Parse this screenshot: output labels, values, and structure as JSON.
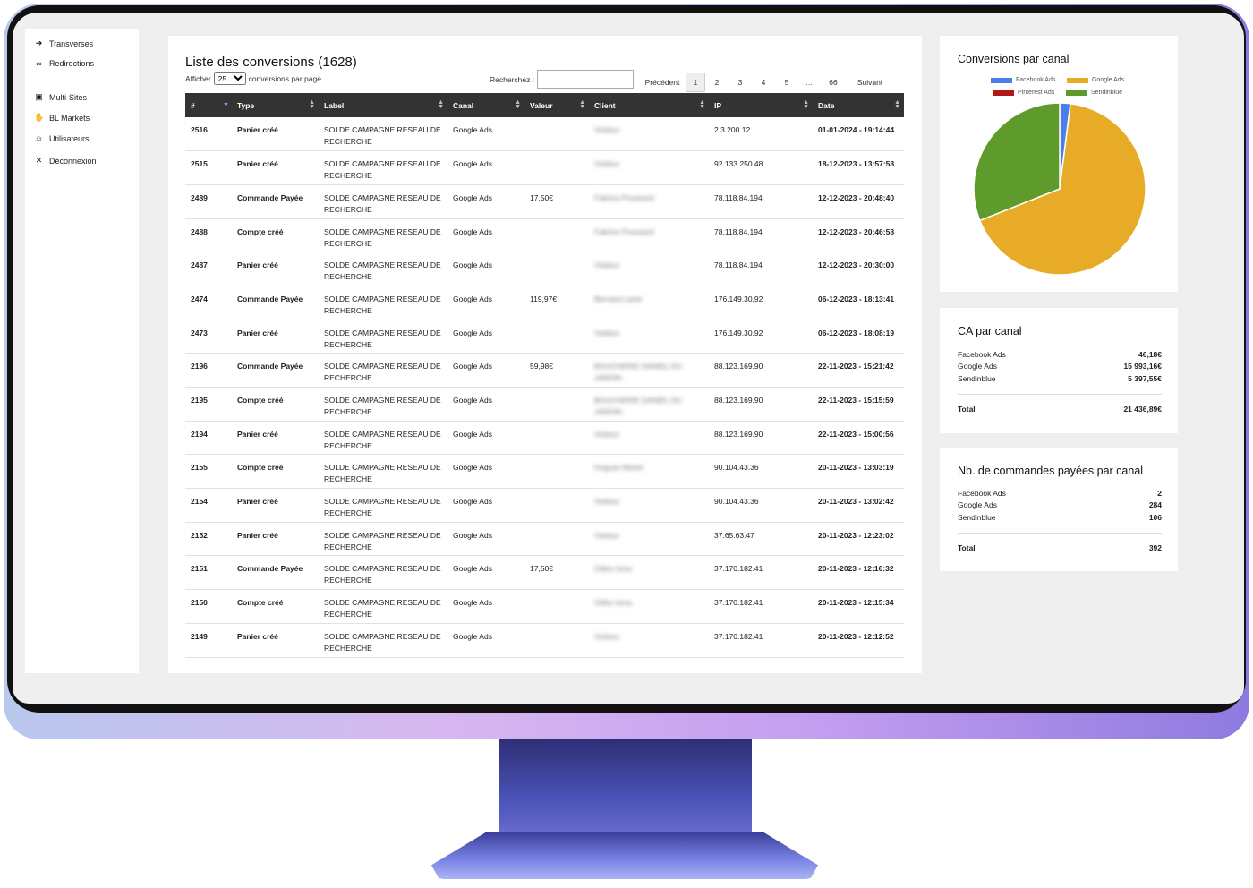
{
  "sidebar": {
    "items": [
      {
        "label": "Transverses",
        "icon": "arrow-left-icon"
      },
      {
        "label": "Redirections",
        "icon": "link-icon"
      },
      {
        "label": "Multi-Sites",
        "icon": "window-icon"
      },
      {
        "label": "BL Markets",
        "icon": "hand-icon"
      },
      {
        "label": "Utilisateurs",
        "icon": "users-icon"
      },
      {
        "label": "Déconnexion",
        "icon": "close-icon"
      }
    ]
  },
  "main": {
    "title": "Liste des conversions (1628)",
    "show_label": "Afficher",
    "per_page": "25",
    "per_page_suffix": "conversions par page",
    "search_label": "Recherchez :",
    "search_value": "",
    "pagination": {
      "prev": "Précédent",
      "pages": [
        "1",
        "2",
        "3",
        "4",
        "5",
        "...",
        "66"
      ],
      "current": "1",
      "next": "Suivant"
    },
    "columns": [
      "#",
      "Type",
      "Label",
      "Canal",
      "Valeur",
      "Client",
      "IP",
      "Date"
    ],
    "rows": [
      {
        "id": "2516",
        "type": "Panier créé",
        "label": "SOLDE CAMPAGNE RESEAU DE RECHERCHE",
        "canal": "Google Ads",
        "valeur": "",
        "client": "Visiteur",
        "ip": "2.3.200.12",
        "date": "01-01-2024 - 19:14:44"
      },
      {
        "id": "2515",
        "type": "Panier créé",
        "label": "SOLDE CAMPAGNE RESEAU DE RECHERCHE",
        "canal": "Google Ads",
        "valeur": "",
        "client": "Visiteur",
        "ip": "92.133.250.48",
        "date": "18-12-2023 - 13:57:58"
      },
      {
        "id": "2489",
        "type": "Commande Payée",
        "label": "SOLDE CAMPAGNE RESEAU DE RECHERCHE",
        "canal": "Google Ads",
        "valeur": "17,50€",
        "client": "Fabrice Poussard",
        "ip": "78.118.84.194",
        "date": "12-12-2023 - 20:48:40"
      },
      {
        "id": "2488",
        "type": "Compte créé",
        "label": "SOLDE CAMPAGNE RESEAU DE RECHERCHE",
        "canal": "Google Ads",
        "valeur": "",
        "client": "Fabrice Poussard",
        "ip": "78.118.84.194",
        "date": "12-12-2023 - 20:46:58"
      },
      {
        "id": "2487",
        "type": "Panier créé",
        "label": "SOLDE CAMPAGNE RESEAU DE RECHERCHE",
        "canal": "Google Ads",
        "valeur": "",
        "client": "Visiteur",
        "ip": "78.118.84.194",
        "date": "12-12-2023 - 20:30:00"
      },
      {
        "id": "2474",
        "type": "Commande Payée",
        "label": "SOLDE CAMPAGNE RESEAU DE RECHERCHE",
        "canal": "Google Ads",
        "valeur": "119,97€",
        "client": "Bernard Lanie",
        "ip": "176.149.30.92",
        "date": "06-12-2023 - 18:13:41"
      },
      {
        "id": "2473",
        "type": "Panier créé",
        "label": "SOLDE CAMPAGNE RESEAU DE RECHERCHE",
        "canal": "Google Ads",
        "valeur": "",
        "client": "Visiteur",
        "ip": "176.149.30.92",
        "date": "06-12-2023 - 18:08:19"
      },
      {
        "id": "2196",
        "type": "Commande Payée",
        "label": "SOLDE CAMPAGNE RESEAU DE RECHERCHE",
        "canal": "Google Ads",
        "valeur": "59,98€",
        "client": "BOUCHERIE DANIEL DU JARDIN",
        "ip": "88.123.169.90",
        "date": "22-11-2023 - 15:21:42"
      },
      {
        "id": "2195",
        "type": "Compte créé",
        "label": "SOLDE CAMPAGNE RESEAU DE RECHERCHE",
        "canal": "Google Ads",
        "valeur": "",
        "client": "BOUCHERIE DANIEL DU JARDIN",
        "ip": "88.123.169.90",
        "date": "22-11-2023 - 15:15:59"
      },
      {
        "id": "2194",
        "type": "Panier créé",
        "label": "SOLDE CAMPAGNE RESEAU DE RECHERCHE",
        "canal": "Google Ads",
        "valeur": "",
        "client": "Visiteur",
        "ip": "88.123.169.90",
        "date": "22-11-2023 - 15:00:56"
      },
      {
        "id": "2155",
        "type": "Compte créé",
        "label": "SOLDE CAMPAGNE RESEAU DE RECHERCHE",
        "canal": "Google Ads",
        "valeur": "",
        "client": "Hugues Martin",
        "ip": "90.104.43.36",
        "date": "20-11-2023 - 13:03:19"
      },
      {
        "id": "2154",
        "type": "Panier créé",
        "label": "SOLDE CAMPAGNE RESEAU DE RECHERCHE",
        "canal": "Google Ads",
        "valeur": "",
        "client": "Visiteur",
        "ip": "90.104.43.36",
        "date": "20-11-2023 - 13:02:42"
      },
      {
        "id": "2152",
        "type": "Panier créé",
        "label": "SOLDE CAMPAGNE RESEAU DE RECHERCHE",
        "canal": "Google Ads",
        "valeur": "",
        "client": "Visiteur",
        "ip": "37.65.63.47",
        "date": "20-11-2023 - 12:23:02"
      },
      {
        "id": "2151",
        "type": "Commande Payée",
        "label": "SOLDE CAMPAGNE RESEAU DE RECHERCHE",
        "canal": "Google Ads",
        "valeur": "17,50€",
        "client": "Gilles Isma",
        "ip": "37.170.182.41",
        "date": "20-11-2023 - 12:16:32"
      },
      {
        "id": "2150",
        "type": "Compte créé",
        "label": "SOLDE CAMPAGNE RESEAU DE RECHERCHE",
        "canal": "Google Ads",
        "valeur": "",
        "client": "Gilles Isma",
        "ip": "37.170.182.41",
        "date": "20-11-2023 - 12:15:34"
      },
      {
        "id": "2149",
        "type": "Panier créé",
        "label": "SOLDE CAMPAGNE RESEAU DE RECHERCHE",
        "canal": "Google Ads",
        "valeur": "",
        "client": "Visiteur",
        "ip": "37.170.182.41",
        "date": "20-11-2023 - 12:12:52"
      }
    ]
  },
  "conversions_card": {
    "title": "Conversions par canal",
    "legend": [
      {
        "name": "Facebook Ads",
        "color": "#4a7ee8"
      },
      {
        "name": "Google Ads",
        "color": "#e8ab28"
      },
      {
        "name": "Pinterest Ads",
        "color": "#b01818"
      },
      {
        "name": "Sendinblue",
        "color": "#5e9b2c"
      }
    ]
  },
  "chart_data": {
    "type": "pie",
    "title": "Conversions par canal",
    "categories": [
      "Facebook Ads",
      "Google Ads",
      "Pinterest Ads",
      "Sendinblue"
    ],
    "values": [
      2,
      67,
      0,
      31
    ],
    "colors": [
      "#4a7ee8",
      "#e8ab28",
      "#b01818",
      "#5e9b2c"
    ],
    "legend": "top"
  },
  "ca_card": {
    "title": "CA par canal",
    "rows": [
      {
        "label": "Facebook Ads",
        "value": "46,18€"
      },
      {
        "label": "Google Ads",
        "value": "15 993,16€"
      },
      {
        "label": "Sendinblue",
        "value": "5 397,55€"
      }
    ],
    "total_label": "Total",
    "total_value": "21 436,89€"
  },
  "orders_card": {
    "title": "Nb. de commandes payées par canal",
    "rows": [
      {
        "label": "Facebook Ads",
        "value": "2"
      },
      {
        "label": "Google Ads",
        "value": "284"
      },
      {
        "label": "Sendinblue",
        "value": "106"
      }
    ],
    "total_label": "Total",
    "total_value": "392"
  }
}
